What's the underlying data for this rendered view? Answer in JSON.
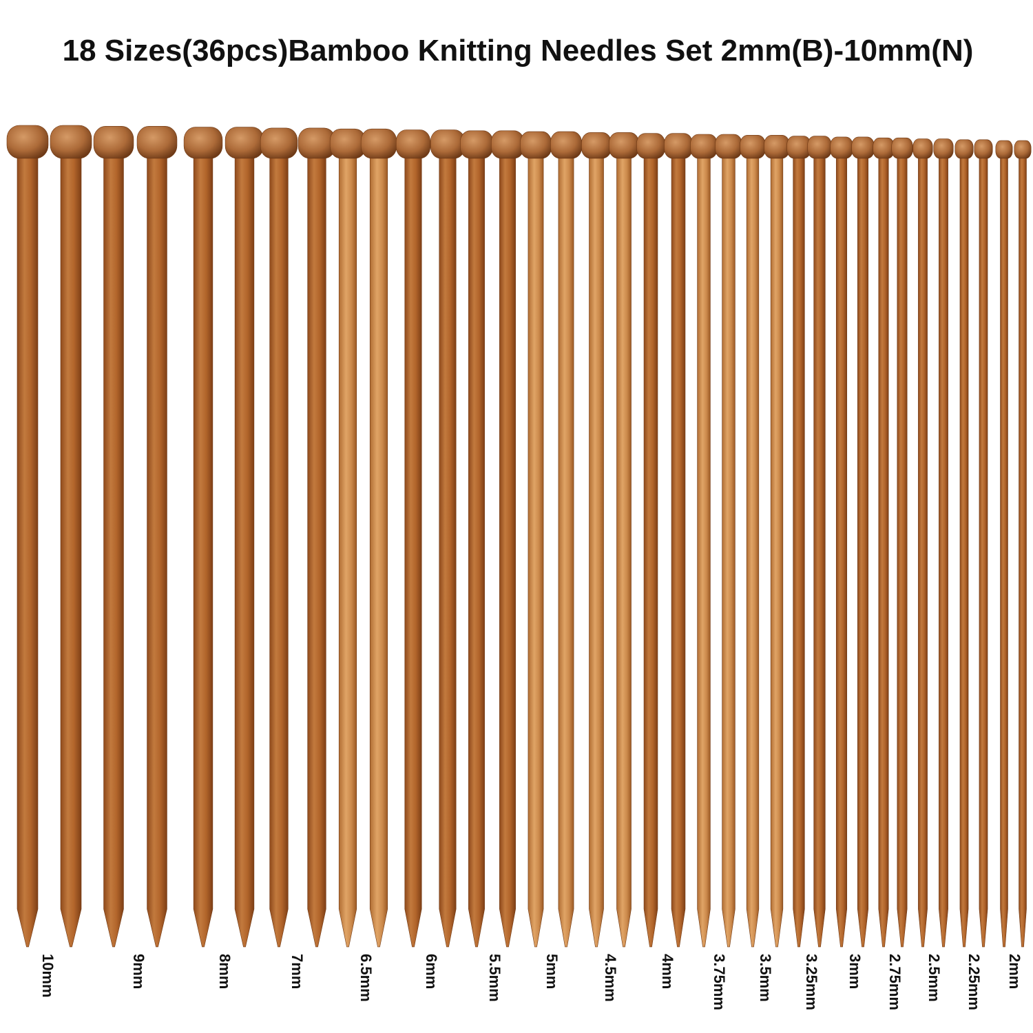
{
  "title": "18 Sizes(36pcs)Bamboo Knitting Needles Set 2mm(B)-10mm(N)",
  "sizes": [
    "10mm",
    "9mm",
    "8mm",
    "7mm",
    "6.5mm",
    "6mm",
    "5.5mm",
    "5mm",
    "4.5mm",
    "4mm",
    "3.75mm",
    "3.5mm",
    "3.25mm",
    "3mm",
    "2.75mm",
    "2.5mm",
    "2.25mm",
    "2mm"
  ]
}
